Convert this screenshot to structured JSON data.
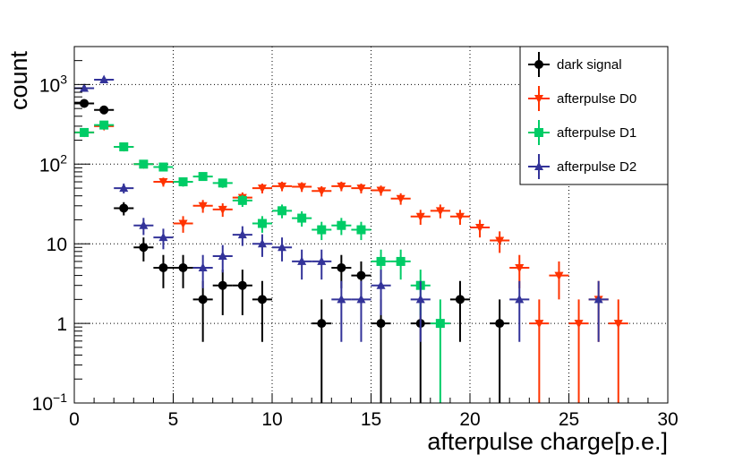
{
  "chart_data": {
    "type": "scatter",
    "title": "",
    "xlabel": "afterpulse charge[p.e.]",
    "ylabel": "count",
    "xlim": [
      0,
      30
    ],
    "ylim": [
      0.1,
      3000
    ],
    "yscale": "log",
    "grid": true,
    "legend_position": "top-right",
    "x_ticks": [
      0,
      5,
      10,
      15,
      20,
      25,
      30
    ],
    "x_tick_labels": [
      "0",
      "5",
      "10",
      "15",
      "20",
      "25",
      "30"
    ],
    "y_ticks": [
      0.1,
      1,
      10,
      100,
      1000
    ],
    "y_tick_labels": [
      {
        "base": "10",
        "exp": "−1"
      },
      {
        "base": "1",
        "exp": ""
      },
      {
        "base": "10",
        "exp": ""
      },
      {
        "base": "10",
        "exp": "2"
      },
      {
        "base": "10",
        "exp": "3"
      }
    ],
    "bin_width": 1,
    "series": [
      {
        "name": "dark signal",
        "color": "#000000",
        "marker": "circle",
        "x": [
          0.5,
          1.5,
          2.5,
          3.5,
          4.5,
          5.5,
          6.5,
          7.5,
          8.5,
          9.5,
          12.5,
          13.5,
          14.5,
          15.5,
          17.5,
          19.5,
          21.5
        ],
        "y": [
          580,
          480,
          28,
          9,
          5,
          5,
          2,
          3,
          3,
          2,
          1,
          5,
          4,
          1,
          1,
          2,
          1
        ]
      },
      {
        "name": "afterpulse D0",
        "color": "#ff3300",
        "marker": "triangle-down",
        "x": [
          0.5,
          1.5,
          2.5,
          3.5,
          4.5,
          5.5,
          6.5,
          7.5,
          8.5,
          9.5,
          10.5,
          11.5,
          12.5,
          13.5,
          14.5,
          15.5,
          16.5,
          17.5,
          18.5,
          19.5,
          20.5,
          21.5,
          22.5,
          23.5,
          24.5,
          25.5,
          26.5,
          27.5
        ],
        "y": [
          250,
          300,
          165,
          100,
          60,
          18,
          30,
          27,
          38,
          50,
          53,
          52,
          46,
          53,
          50,
          47,
          37,
          22,
          26,
          22,
          16,
          11,
          5,
          1,
          4,
          1,
          2,
          1
        ]
      },
      {
        "name": "afterpulse D1",
        "color": "#00cc66",
        "marker": "square",
        "x": [
          0.5,
          1.5,
          2.5,
          3.5,
          4.5,
          5.5,
          6.5,
          7.5,
          8.5,
          9.5,
          10.5,
          11.5,
          12.5,
          13.5,
          14.5,
          15.5,
          16.5,
          17.5,
          18.5
        ],
        "y": [
          250,
          310,
          165,
          100,
          92,
          60,
          70,
          58,
          35,
          18,
          26,
          21,
          15,
          17,
          15,
          6,
          6,
          3,
          1
        ]
      },
      {
        "name": "afterpulse D2",
        "color": "#333399",
        "marker": "triangle-up",
        "x": [
          0.5,
          1.5,
          2.5,
          3.5,
          4.5,
          6.5,
          7.5,
          8.5,
          9.5,
          10.5,
          11.5,
          12.5,
          13.5,
          14.5,
          15.5,
          17.5,
          22.5,
          26.5
        ],
        "y": [
          900,
          1150,
          50,
          17,
          12,
          5,
          7,
          13,
          10,
          9,
          6,
          6,
          2,
          2,
          3,
          2,
          2,
          2
        ]
      }
    ]
  }
}
